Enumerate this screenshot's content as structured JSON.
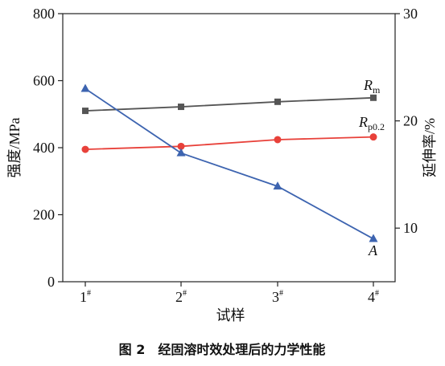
{
  "chart_data": {
    "type": "line",
    "caption": "图 2　经固溶时效处理后的力学性能",
    "xlabel": "试样",
    "ylabel_left": "强度/MPa",
    "ylabel_right": "延伸率/%",
    "categories": [
      {
        "base": "1",
        "sup": "#"
      },
      {
        "base": "2",
        "sup": "#"
      },
      {
        "base": "3",
        "sup": "#"
      },
      {
        "base": "4",
        "sup": "#"
      }
    ],
    "ylim_left": [
      0,
      800
    ],
    "yticks_left": [
      "0",
      "200",
      "400",
      "600",
      "800"
    ],
    "ylim_right": [
      5,
      30
    ],
    "yticks_right": [
      "10",
      "20",
      "30"
    ],
    "grid": false,
    "series": [
      {
        "name_main": "R",
        "name_sub": "m",
        "axis": "left",
        "values": [
          510,
          522,
          537,
          549
        ],
        "color": "#555555",
        "marker": "square"
      },
      {
        "name_main": "R",
        "name_sub": "p0.2",
        "axis": "left",
        "values": [
          395,
          404,
          424,
          432
        ],
        "color": "#e8413a",
        "marker": "circle"
      },
      {
        "name_main": "A",
        "name_sub": "",
        "axis": "right",
        "values": [
          23.0,
          17.0,
          13.9,
          9.0
        ],
        "color": "#3d64b0",
        "marker": "triangle"
      }
    ]
  }
}
